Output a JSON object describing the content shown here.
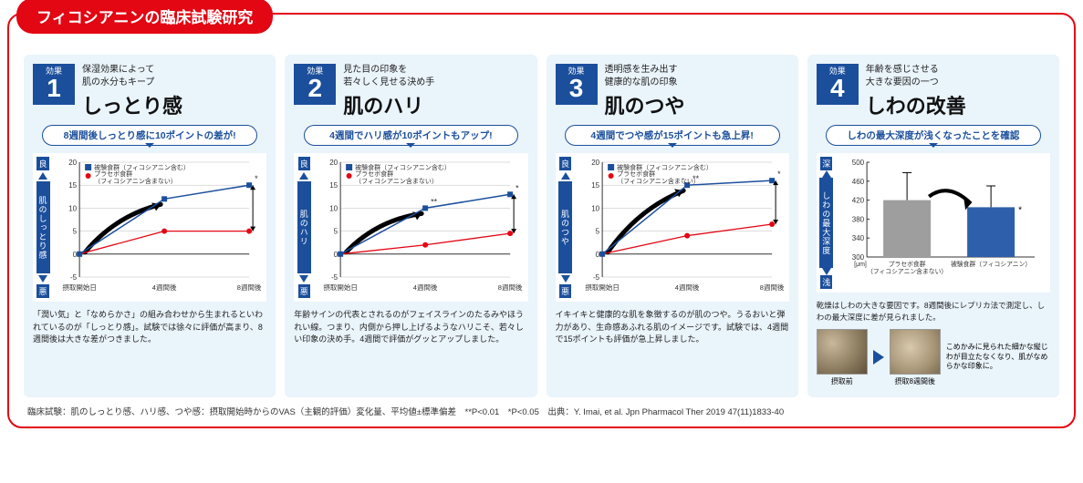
{
  "title": "フィコシアニンの臨床試験研究",
  "colors": {
    "brand_red": "#e30613",
    "brand_blue": "#1b4f9c",
    "panel_bg": "#eaf4fb",
    "series_test": "#1b4f9c",
    "series_placebo": "#e30613",
    "grid": "#888",
    "bar_placebo": "#9e9e9e",
    "bar_test": "#2e5fab"
  },
  "effect_label": "効果",
  "legend": {
    "test": "被験食群（フィコシアニン含む）",
    "placebo": "プラセボ食群\n（フィコシアニン含まない）",
    "test_short": "被験食群（フィコシアニン）",
    "placebo_short": "プラセボ食群\n（フィコシアニン含まない）"
  },
  "axis": {
    "good": "良",
    "bad": "悪",
    "deep": "深",
    "shallow": "浅",
    "x_labels": [
      "摂取開始日",
      "4週間後",
      "8週間後"
    ]
  },
  "panels": [
    {
      "num": "1",
      "sub": "保湿効果によって\n肌の水分もキープ",
      "main": "しっとり感",
      "callout": "8週間後しっとり感に10ポイントの差が!",
      "ylabel": "肌のしっとり感",
      "ylim": [
        -5,
        20
      ],
      "ytick": 5,
      "test": [
        0,
        12,
        15
      ],
      "placebo": [
        0,
        5,
        5
      ],
      "sig": [
        "",
        "",
        "*"
      ],
      "desc": "「潤い気」と「なめらかさ」の組み合わせから生まれるといわれているのが「しっとり感」。試験では徐々に評価が高まり、8週間後は大きな差がつきました。"
    },
    {
      "num": "2",
      "sub": "見た目の印象を\n若々しく見せる決め手",
      "main": "肌のハリ",
      "callout": "4週間でハリ感が10ポイントもアップ!",
      "ylabel": "肌のハリ",
      "ylim": [
        -5,
        20
      ],
      "ytick": 5,
      "test": [
        0,
        10,
        13
      ],
      "placebo": [
        0,
        2,
        4.5
      ],
      "sig": [
        "",
        "**",
        "*"
      ],
      "desc": "年齢サインの代表とされるのがフェイスラインのたるみやほうれい線。つまり、内側から押し上げるようなハリこそ、若々しい印象の決め手。4週間で評価がグッとアップしました。"
    },
    {
      "num": "3",
      "sub": "透明感を生み出す\n健康的な肌の印象",
      "main": "肌のつや",
      "callout": "4週間でつや感が15ポイントも急上昇!",
      "ylabel": "肌のつや",
      "ylim": [
        -5,
        20
      ],
      "ytick": 5,
      "test": [
        0,
        15,
        16
      ],
      "placebo": [
        0,
        4,
        6.5
      ],
      "sig": [
        "",
        "**",
        "*"
      ],
      "desc": "イキイキと健康的な肌を象徴するのが肌のつや。うるおいと弾力があり、生命感あふれる肌のイメージです。試験では、4週間で15ポイントも評価が急上昇しました。"
    }
  ],
  "panel4": {
    "num": "4",
    "sub": "年齢を感じさせる\n大きな要因の一つ",
    "main": "しわの改善",
    "callout": "しわの最大深度が浅くなったことを確認",
    "ylabel": "しわの最大深度",
    "y_unit": "[μm]",
    "ylim": [
      300,
      500
    ],
    "ytick": 40,
    "bars": [
      {
        "label": "プラセボ食群\n（フィコシアニン含まない）",
        "value": 420,
        "err": 58,
        "color": "#9e9e9e"
      },
      {
        "label": "被験食群（フィコシアニン）",
        "value": 405,
        "err": 45,
        "color": "#2e5fab",
        "sig": "*"
      }
    ],
    "note": "乾燥はしわの大きな要因です。8週間後にレプリカ法で測定し、しわの最大深度に差が見られました。",
    "photo_before": "摂取前",
    "photo_after": "摂取8週間後",
    "side_note": "こめかみに見られた細かな縦じわが目立たなくなり、肌がなめらかな印象に。"
  },
  "footnote": "臨床試験：肌のしっとり感、ハリ感、つや感：摂取開始時からのVAS（主観的評価）変化量、平均値±標準偏差　**P<0.01　*P<0.05　出典：Y. Imai, et al. Jpn Pharmacol Ther 2019 47(11)1833-40"
}
